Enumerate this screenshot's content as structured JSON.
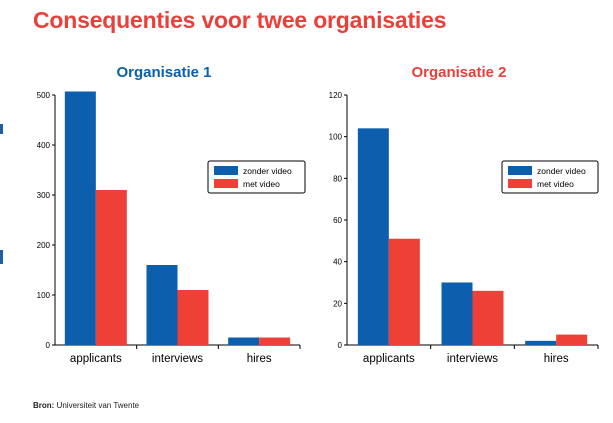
{
  "title": "Consequenties voor twee organisaties",
  "colors": {
    "title": "#e8403a",
    "series_zonder": "#0b5fac",
    "series_met": "#ee4036",
    "chart1_title": "#0b5fac",
    "chart2_title": "#e8403a",
    "axis": "#000000"
  },
  "source": {
    "label": "Bron:",
    "text": "Universiteit van Twente"
  },
  "chart_data": [
    {
      "type": "bar",
      "title": "Organisatie 1",
      "categories": [
        "applicants",
        "interviews",
        "hires"
      ],
      "series": [
        {
          "name": "zonder video",
          "values": [
            507,
            160,
            15
          ]
        },
        {
          "name": "met video",
          "values": [
            310,
            110,
            15
          ]
        }
      ],
      "ylim": [
        0,
        500
      ],
      "yticks": [
        0,
        100,
        200,
        300,
        400,
        500
      ],
      "legend": "right"
    },
    {
      "type": "bar",
      "title": "Organisatie 2",
      "categories": [
        "applicants",
        "interviews",
        "hires"
      ],
      "series": [
        {
          "name": "zonder video",
          "values": [
            104,
            30,
            2
          ]
        },
        {
          "name": "met video",
          "values": [
            51,
            26,
            5
          ]
        }
      ],
      "ylim": [
        0,
        120
      ],
      "yticks": [
        0,
        20,
        40,
        60,
        80,
        100,
        120
      ],
      "legend": "right"
    }
  ]
}
